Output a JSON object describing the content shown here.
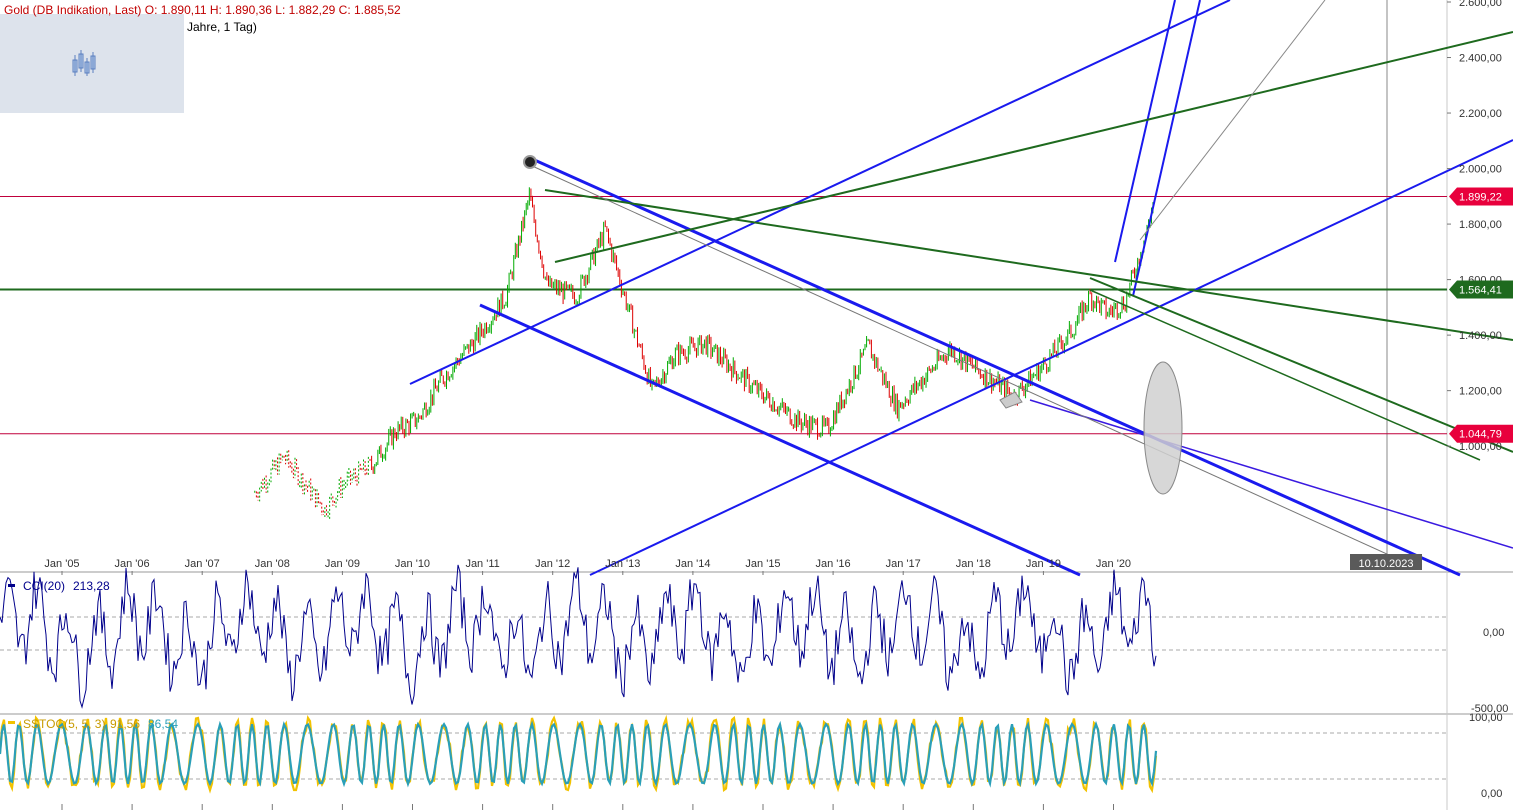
{
  "header": {
    "instrument_line": "Gold (DB Indikation, Last)  O: 1.890,11  H: 1.890,36  L: 1.882,29  C: 1.885,52",
    "period_line": "Jahre, 1 Tag)"
  },
  "colors": {
    "up_candle": "#00aa00",
    "down_candle": "#dd0000",
    "trend_blue": "#1a1aee",
    "trend_green": "#1e6a1e",
    "hline_red": "#c0003c",
    "cci_line": "#00008b",
    "stoch_k": "#f2c200",
    "stoch_d": "#2a9fb8"
  },
  "chart_data": [
    {
      "type": "line",
      "title": "Gold (DB Indikation, Last)",
      "ohlc_last": {
        "open": 1890.11,
        "high": 1890.36,
        "low": 1882.29,
        "close": 1885.52
      },
      "x_tick_labels": [
        "Jan '05",
        "Jan '06",
        "Jan '07",
        "Jan '08",
        "Jan '09",
        "Jan '10",
        "Jan '11",
        "Jan '12",
        "Jan '13",
        "Jan '14",
        "Jan '15",
        "Jan '16",
        "Jan '17",
        "Jan '18",
        "Jan '19",
        "Jan '20"
      ],
      "y_tick_labels": [
        "2.600,00",
        "2.400,00",
        "2.200,00",
        "2.000,00",
        "1.800,00",
        "1.600,00",
        "1.400,00",
        "1.200,00",
        "1.000,00"
      ],
      "ylim": [
        750,
        2600
      ],
      "series": [
        {
          "x": [
            "2007-10",
            "2008-03",
            "2008-10",
            "2009-01",
            "2009-06",
            "2009-10",
            "2010-02",
            "2010-06",
            "2010-12",
            "2011-05",
            "2011-09",
            "2011-12",
            "2012-05",
            "2012-10",
            "2013-06",
            "2013-10",
            "2014-03",
            "2014-12",
            "2015-07",
            "2015-12",
            "2016-07",
            "2016-12",
            "2017-09",
            "2017-12",
            "2018-08",
            "2019-01",
            "2019-06",
            "2019-09",
            "2019-12",
            "2020-03",
            "2020-07",
            "2020-08"
          ],
          "values": [
            830,
            960,
            770,
            860,
            930,
            1050,
            1100,
            1240,
            1390,
            1540,
            1900,
            1580,
            1540,
            1780,
            1200,
            1330,
            1370,
            1200,
            1090,
            1060,
            1360,
            1140,
            1350,
            1300,
            1180,
            1290,
            1420,
            1540,
            1480,
            1520,
            1800,
            1899
          ]
        }
      ],
      "price_labels": [
        "1.899,22",
        "1.564,41",
        "1.044,79"
      ],
      "date_label": "10.10.2023"
    },
    {
      "type": "line",
      "title": "CCI(20)",
      "last_value": "213,28",
      "y_tick_labels": [
        "0,00",
        "-500,00"
      ]
    },
    {
      "type": "line",
      "title": "SSTOC(5, 5, 3)",
      "last_values": [
        "91,56",
        "86,54"
      ],
      "y_tick_labels": [
        "100,00",
        "0,00"
      ]
    }
  ]
}
